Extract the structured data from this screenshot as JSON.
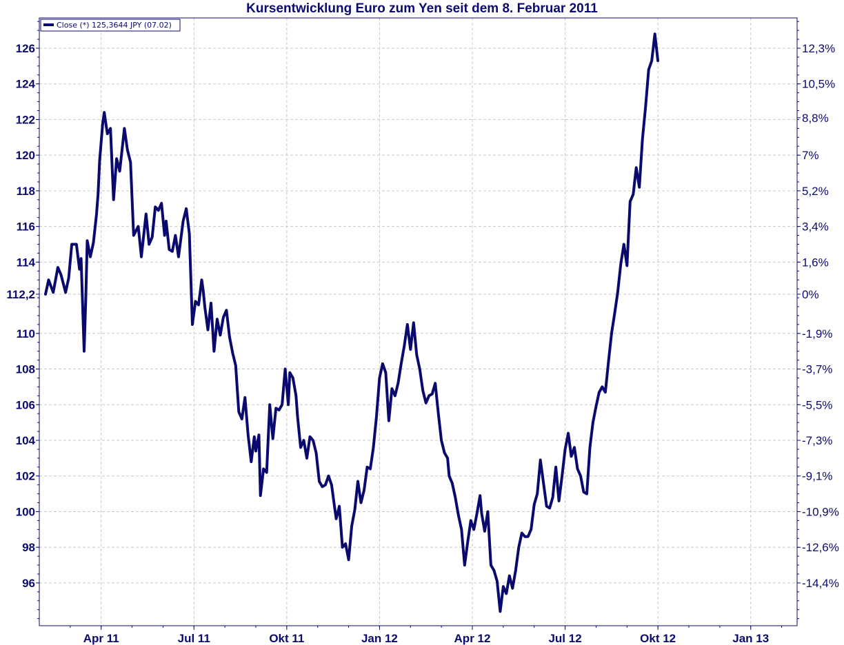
{
  "chart_data": {
    "type": "line",
    "title": "Kursentwicklung Euro zum Yen seit dem 8. Februar 2011",
    "legend": {
      "label": "Close (*) 125,3644 JPY (07.02)",
      "placement": "top-left"
    },
    "colors": {
      "line": "#0a0a6e",
      "grid": "#c8c8c8",
      "text": "#0a0a6e"
    },
    "grid": true,
    "x_range": [
      -0.2,
      24.3
    ],
    "ylim": [
      93.6,
      127.7
    ],
    "left_ticks": [
      {
        "value": 126,
        "label": "126"
      },
      {
        "value": 124,
        "label": "124"
      },
      {
        "value": 122,
        "label": "122"
      },
      {
        "value": 120,
        "label": "120"
      },
      {
        "value": 118,
        "label": "118"
      },
      {
        "value": 116,
        "label": "116"
      },
      {
        "value": 114,
        "label": "114"
      },
      {
        "value": 112.2,
        "label": "112,2"
      },
      {
        "value": 110,
        "label": "110"
      },
      {
        "value": 108,
        "label": "108"
      },
      {
        "value": 106,
        "label": "106"
      },
      {
        "value": 104,
        "label": "104"
      },
      {
        "value": 102,
        "label": "102"
      },
      {
        "value": 100,
        "label": "100"
      },
      {
        "value": 98,
        "label": "98"
      },
      {
        "value": 96,
        "label": "96"
      }
    ],
    "right_ticks": [
      {
        "value": 126.0,
        "label": "12,3%"
      },
      {
        "value": 124.0,
        "label": "10,5%"
      },
      {
        "value": 122.1,
        "label": "8,8%"
      },
      {
        "value": 120.0,
        "label": "7%"
      },
      {
        "value": 118.0,
        "label": "5,2%"
      },
      {
        "value": 116.0,
        "label": "3,4%"
      },
      {
        "value": 114.0,
        "label": "1,6%"
      },
      {
        "value": 112.2,
        "label": "0%"
      },
      {
        "value": 110.0,
        "label": "-1,9%"
      },
      {
        "value": 108.0,
        "label": "-3,7%"
      },
      {
        "value": 106.0,
        "label": "-5,5%"
      },
      {
        "value": 104.0,
        "label": "-7,3%"
      },
      {
        "value": 102.0,
        "label": "-9,1%"
      },
      {
        "value": 100.0,
        "label": "-10,9%"
      },
      {
        "value": 98.0,
        "label": "-12,6%"
      },
      {
        "value": 96.0,
        "label": "-14,4%"
      }
    ],
    "x_ticks": [
      {
        "value": 1.8,
        "label": "Apr 11"
      },
      {
        "value": 4.8,
        "label": "Jul 11"
      },
      {
        "value": 7.8,
        "label": "Okt 11"
      },
      {
        "value": 10.8,
        "label": "Jan 12"
      },
      {
        "value": 13.8,
        "label": "Apr 12"
      },
      {
        "value": 16.8,
        "label": "Jul 12"
      },
      {
        "value": 19.8,
        "label": "Okt 12"
      },
      {
        "value": 22.8,
        "label": "Jan 13"
      }
    ],
    "series": [
      {
        "name": "Close (*)",
        "points": [
          [
            0.0,
            112.2
          ],
          [
            0.1,
            113.0
          ],
          [
            0.25,
            112.3
          ],
          [
            0.4,
            113.7
          ],
          [
            0.5,
            113.3
          ],
          [
            0.65,
            112.3
          ],
          [
            0.75,
            113.1
          ],
          [
            0.85,
            115.0
          ],
          [
            1.0,
            115.0
          ],
          [
            1.1,
            113.6
          ],
          [
            1.15,
            114.2
          ],
          [
            1.25,
            109.0
          ],
          [
            1.3,
            111.8
          ],
          [
            1.35,
            115.2
          ],
          [
            1.45,
            114.3
          ],
          [
            1.55,
            115.1
          ],
          [
            1.65,
            116.7
          ],
          [
            1.7,
            117.8
          ],
          [
            1.75,
            119.7
          ],
          [
            1.85,
            121.8
          ],
          [
            1.9,
            122.4
          ],
          [
            2.0,
            121.2
          ],
          [
            2.1,
            121.5
          ],
          [
            2.2,
            117.5
          ],
          [
            2.3,
            119.8
          ],
          [
            2.4,
            119.1
          ],
          [
            2.55,
            121.5
          ],
          [
            2.65,
            120.3
          ],
          [
            2.75,
            119.6
          ],
          [
            2.85,
            115.5
          ],
          [
            3.0,
            116.0
          ],
          [
            3.1,
            114.3
          ],
          [
            3.25,
            116.7
          ],
          [
            3.35,
            115.0
          ],
          [
            3.45,
            115.4
          ],
          [
            3.55,
            117.1
          ],
          [
            3.65,
            116.9
          ],
          [
            3.75,
            117.3
          ],
          [
            3.85,
            115.5
          ],
          [
            3.9,
            116.3
          ],
          [
            4.0,
            114.7
          ],
          [
            4.1,
            114.6
          ],
          [
            4.2,
            115.5
          ],
          [
            4.3,
            114.3
          ],
          [
            4.45,
            116.3
          ],
          [
            4.55,
            117.0
          ],
          [
            4.65,
            115.6
          ],
          [
            4.75,
            110.5
          ],
          [
            4.85,
            111.8
          ],
          [
            4.95,
            111.6
          ],
          [
            5.05,
            113.0
          ],
          [
            5.1,
            112.4
          ],
          [
            5.15,
            111.5
          ],
          [
            5.25,
            110.2
          ],
          [
            5.35,
            111.7
          ],
          [
            5.45,
            109.0
          ],
          [
            5.55,
            110.8
          ],
          [
            5.65,
            109.9
          ],
          [
            5.75,
            110.9
          ],
          [
            5.85,
            111.3
          ],
          [
            5.95,
            109.8
          ],
          [
            6.05,
            108.9
          ],
          [
            6.15,
            108.2
          ],
          [
            6.25,
            105.6
          ],
          [
            6.35,
            105.2
          ],
          [
            6.45,
            106.4
          ],
          [
            6.55,
            104.3
          ],
          [
            6.65,
            102.8
          ],
          [
            6.75,
            104.2
          ],
          [
            6.8,
            103.4
          ],
          [
            6.9,
            104.3
          ],
          [
            6.95,
            100.9
          ],
          [
            7.05,
            102.4
          ],
          [
            7.15,
            102.2
          ],
          [
            7.25,
            106.0
          ],
          [
            7.35,
            104.1
          ],
          [
            7.45,
            105.8
          ],
          [
            7.55,
            105.7
          ],
          [
            7.65,
            106.0
          ],
          [
            7.75,
            108.0
          ],
          [
            7.85,
            106.0
          ],
          [
            7.9,
            107.8
          ],
          [
            8.0,
            107.5
          ],
          [
            8.1,
            106.5
          ],
          [
            8.15,
            105.3
          ],
          [
            8.25,
            103.6
          ],
          [
            8.35,
            104.0
          ],
          [
            8.45,
            103.0
          ],
          [
            8.55,
            104.2
          ],
          [
            8.65,
            104.0
          ],
          [
            8.75,
            103.3
          ],
          [
            8.85,
            101.7
          ],
          [
            8.95,
            101.4
          ],
          [
            9.05,
            101.5
          ],
          [
            9.15,
            102.0
          ],
          [
            9.25,
            101.5
          ],
          [
            9.35,
            100.2
          ],
          [
            9.4,
            99.6
          ],
          [
            9.5,
            100.3
          ],
          [
            9.6,
            98.0
          ],
          [
            9.7,
            98.2
          ],
          [
            9.8,
            97.3
          ],
          [
            9.9,
            99.2
          ],
          [
            10.0,
            100.1
          ],
          [
            10.1,
            101.7
          ],
          [
            10.2,
            100.5
          ],
          [
            10.3,
            101.2
          ],
          [
            10.4,
            102.5
          ],
          [
            10.5,
            102.4
          ],
          [
            10.6,
            103.6
          ],
          [
            10.7,
            105.3
          ],
          [
            10.8,
            107.5
          ],
          [
            10.9,
            108.3
          ],
          [
            11.0,
            107.8
          ],
          [
            11.1,
            105.1
          ],
          [
            11.2,
            106.9
          ],
          [
            11.3,
            106.5
          ],
          [
            11.4,
            107.2
          ],
          [
            11.5,
            108.3
          ],
          [
            11.6,
            109.3
          ],
          [
            11.7,
            110.5
          ],
          [
            11.8,
            109.1
          ],
          [
            11.9,
            110.6
          ],
          [
            12.0,
            108.8
          ],
          [
            12.1,
            108.0
          ],
          [
            12.2,
            106.8
          ],
          [
            12.3,
            106.1
          ],
          [
            12.4,
            106.5
          ],
          [
            12.5,
            106.6
          ],
          [
            12.6,
            107.2
          ],
          [
            12.7,
            105.5
          ],
          [
            12.8,
            104.0
          ],
          [
            12.9,
            103.3
          ],
          [
            13.0,
            103.0
          ],
          [
            13.05,
            102.0
          ],
          [
            13.15,
            101.6
          ],
          [
            13.25,
            100.8
          ],
          [
            13.35,
            99.8
          ],
          [
            13.45,
            99.0
          ],
          [
            13.55,
            97.0
          ],
          [
            13.65,
            98.3
          ],
          [
            13.75,
            99.5
          ],
          [
            13.85,
            99.0
          ],
          [
            13.95,
            99.9
          ],
          [
            14.05,
            100.9
          ],
          [
            14.1,
            99.9
          ],
          [
            14.2,
            98.9
          ],
          [
            14.3,
            100.0
          ],
          [
            14.4,
            97.0
          ],
          [
            14.5,
            96.7
          ],
          [
            14.6,
            96.1
          ],
          [
            14.7,
            94.4
          ],
          [
            14.8,
            95.8
          ],
          [
            14.9,
            95.4
          ],
          [
            15.0,
            96.4
          ],
          [
            15.1,
            95.7
          ],
          [
            15.2,
            96.7
          ],
          [
            15.3,
            98.0
          ],
          [
            15.4,
            98.8
          ],
          [
            15.5,
            98.6
          ],
          [
            15.6,
            98.6
          ],
          [
            15.7,
            99.0
          ],
          [
            15.8,
            100.4
          ],
          [
            15.9,
            101.0
          ],
          [
            16.0,
            102.9
          ],
          [
            16.1,
            101.6
          ],
          [
            16.2,
            100.3
          ],
          [
            16.3,
            100.2
          ],
          [
            16.4,
            100.8
          ],
          [
            16.5,
            102.5
          ],
          [
            16.6,
            100.6
          ],
          [
            16.7,
            102.0
          ],
          [
            16.8,
            103.5
          ],
          [
            16.9,
            104.4
          ],
          [
            17.0,
            103.1
          ],
          [
            17.1,
            103.6
          ],
          [
            17.2,
            102.4
          ],
          [
            17.3,
            102.0
          ],
          [
            17.4,
            101.1
          ],
          [
            17.5,
            101.0
          ],
          [
            17.6,
            103.6
          ],
          [
            17.7,
            105.0
          ],
          [
            17.8,
            105.9
          ],
          [
            17.9,
            106.7
          ],
          [
            18.0,
            107.0
          ],
          [
            18.1,
            106.7
          ],
          [
            18.2,
            108.4
          ],
          [
            18.3,
            110.0
          ],
          [
            18.4,
            111.1
          ],
          [
            18.5,
            112.3
          ],
          [
            18.6,
            113.9
          ],
          [
            18.7,
            115.0
          ],
          [
            18.8,
            113.8
          ],
          [
            18.9,
            117.4
          ],
          [
            19.0,
            117.8
          ],
          [
            19.1,
            119.3
          ],
          [
            19.2,
            118.2
          ],
          [
            19.3,
            120.9
          ],
          [
            19.4,
            122.7
          ],
          [
            19.5,
            124.8
          ],
          [
            19.6,
            125.3
          ],
          [
            19.7,
            126.8
          ],
          [
            19.8,
            125.3
          ]
        ]
      }
    ]
  }
}
